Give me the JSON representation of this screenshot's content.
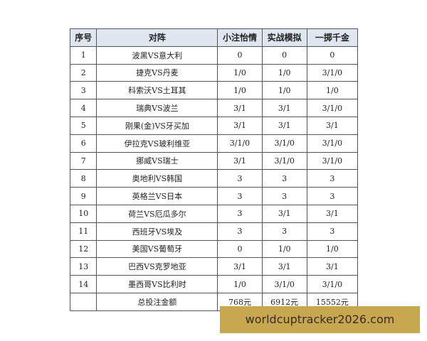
{
  "headers": [
    "序号",
    "对阵",
    "小注怡情",
    "实战模拟",
    "一掷千金"
  ],
  "rows": [
    [
      "1",
      "波黑VS意大利",
      "0",
      "0",
      "0"
    ],
    [
      "2",
      "捷克VS丹麦",
      "1/0",
      "1/0",
      "3/1/0"
    ],
    [
      "3",
      "科索沃VS土耳其",
      "1/0",
      "1/0",
      "1/0"
    ],
    [
      "4",
      "瑞典VS波兰",
      "3/1",
      "3/1",
      "3/1/0"
    ],
    [
      "5",
      "刚果(金)VS牙买加",
      "3/1",
      "3/1",
      "3/1"
    ],
    [
      "6",
      "伊拉克VS玻利维亚",
      "3/1/0",
      "3/1/0",
      "3/1/0"
    ],
    [
      "7",
      "挪威VS瑞士",
      "3/1",
      "3/1/0",
      "3/1/0"
    ],
    [
      "8",
      "奥地利VS韩国",
      "3",
      "3",
      "3"
    ],
    [
      "9",
      "英格兰VS日本",
      "3",
      "3",
      "3"
    ],
    [
      "10",
      "荷兰VS厄瓜多尔",
      "3",
      "3/1",
      "3/1"
    ],
    [
      "11",
      "西班牙VS埃及",
      "3",
      "3",
      "3"
    ],
    [
      "12",
      "美国VS葡萄牙",
      "0",
      "1/0",
      "1/0"
    ],
    [
      "13",
      "巴西VS克罗地亚",
      "3/1",
      "3/1",
      "3/1"
    ],
    [
      "14",
      "墨西哥VS比利时",
      "1/0",
      "3/1/0",
      "3/1/0"
    ]
  ],
  "total": {
    "label": "总投注金额",
    "values": [
      "768元",
      "6912元",
      "15552元"
    ]
  },
  "watermark": "worldcuptracker2026.com"
}
